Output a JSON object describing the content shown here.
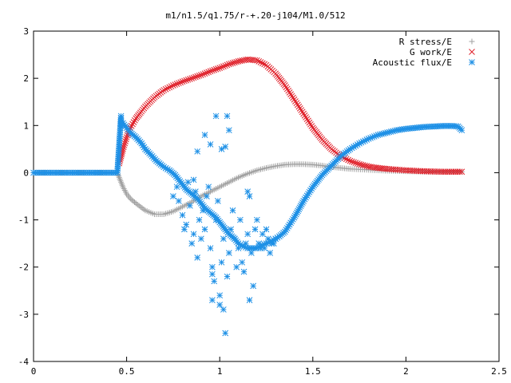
{
  "chart_data": {
    "type": "scatter",
    "title": "m1/n1.5/q1.75/r-+.20-j104/M1.0/512",
    "xlabel": "",
    "ylabel": "",
    "xlim": [
      0,
      2.5
    ],
    "ylim": [
      -4,
      3
    ],
    "xticks": [
      "0",
      "0.5",
      "1",
      "1.5",
      "2",
      "2.5"
    ],
    "yticks": [
      "3",
      "2",
      "1",
      "0",
      "-1",
      "-2",
      "-3",
      "-4"
    ],
    "grid": false,
    "legend_position": "top-right",
    "series": [
      {
        "name": "R stress/E",
        "color": "#a0a0a0",
        "marker": "plus",
        "x": [
          0.0,
          0.1,
          0.2,
          0.3,
          0.4,
          0.45,
          0.46,
          0.47,
          0.48,
          0.5,
          0.52,
          0.55,
          0.6,
          0.65,
          0.7,
          0.75,
          0.8,
          0.85,
          0.9,
          0.95,
          1.0,
          1.05,
          1.1,
          1.15,
          1.2,
          1.25,
          1.3,
          1.35,
          1.4,
          1.45,
          1.5,
          1.55,
          1.6,
          1.65,
          1.7,
          1.8,
          1.9,
          2.0,
          2.1,
          2.2,
          2.3
        ],
        "y": [
          0.0,
          0.0,
          0.0,
          0.0,
          0.0,
          0.0,
          -0.1,
          -0.2,
          -0.3,
          -0.45,
          -0.55,
          -0.65,
          -0.8,
          -0.88,
          -0.88,
          -0.82,
          -0.72,
          -0.62,
          -0.5,
          -0.4,
          -0.3,
          -0.2,
          -0.1,
          -0.02,
          0.05,
          0.1,
          0.14,
          0.17,
          0.18,
          0.18,
          0.17,
          0.15,
          0.12,
          0.1,
          0.08,
          0.06,
          0.04,
          0.03,
          0.02,
          0.02,
          0.02
        ]
      },
      {
        "name": "G work/E",
        "color": "#e0202a",
        "marker": "cross",
        "x": [
          0.46,
          0.47,
          0.48,
          0.5,
          0.52,
          0.55,
          0.58,
          0.6,
          0.65,
          0.7,
          0.75,
          0.8,
          0.85,
          0.9,
          0.95,
          1.0,
          1.05,
          1.1,
          1.15,
          1.2,
          1.25,
          1.3,
          1.35,
          1.4,
          1.45,
          1.5,
          1.55,
          1.6,
          1.65,
          1.7,
          1.75,
          1.8,
          1.85,
          1.9,
          2.0,
          2.1,
          2.2,
          2.3
        ],
        "y": [
          0.2,
          0.35,
          0.5,
          0.75,
          0.95,
          1.15,
          1.3,
          1.4,
          1.6,
          1.75,
          1.85,
          1.93,
          2.0,
          2.07,
          2.15,
          2.22,
          2.3,
          2.36,
          2.4,
          2.38,
          2.28,
          2.1,
          1.85,
          1.55,
          1.25,
          0.95,
          0.7,
          0.5,
          0.35,
          0.25,
          0.18,
          0.13,
          0.1,
          0.08,
          0.05,
          0.03,
          0.02,
          0.02
        ]
      },
      {
        "name": "Acoustic flux/E",
        "color": "#1e90e6",
        "marker": "star",
        "x": [
          0.0,
          0.05,
          0.1,
          0.15,
          0.2,
          0.25,
          0.3,
          0.35,
          0.4,
          0.45,
          0.47,
          0.47,
          0.48,
          0.5,
          0.52,
          0.55,
          0.58,
          0.6,
          0.63,
          0.66,
          0.7,
          0.73,
          0.76,
          0.78,
          0.8,
          0.82,
          0.85,
          0.88,
          0.9,
          0.92,
          0.95,
          0.98,
          1.0,
          1.03,
          1.05,
          1.08,
          1.1,
          1.12,
          1.15,
          1.18,
          1.2,
          1.22,
          1.25,
          1.28,
          1.3,
          1.32,
          1.35,
          1.4,
          1.45,
          1.5,
          1.55,
          1.6,
          1.65,
          1.7,
          1.75,
          1.8,
          1.85,
          1.9,
          1.95,
          2.0,
          2.05,
          2.1,
          2.15,
          2.2,
          2.25,
          2.28,
          2.3
        ],
        "y": [
          0.0,
          0.0,
          0.0,
          0.0,
          0.0,
          0.0,
          0.0,
          0.0,
          0.0,
          0.0,
          1.2,
          1.0,
          1.05,
          0.95,
          0.85,
          0.75,
          0.62,
          0.5,
          0.38,
          0.25,
          0.12,
          0.05,
          -0.05,
          -0.15,
          -0.25,
          -0.35,
          -0.45,
          -0.55,
          -0.65,
          -0.75,
          -0.85,
          -0.95,
          -1.05,
          -1.2,
          -1.3,
          -1.4,
          -1.5,
          -1.55,
          -1.6,
          -1.6,
          -1.6,
          -1.55,
          -1.5,
          -1.45,
          -1.4,
          -1.35,
          -1.25,
          -0.95,
          -0.6,
          -0.3,
          -0.05,
          0.15,
          0.35,
          0.5,
          0.62,
          0.72,
          0.8,
          0.85,
          0.9,
          0.93,
          0.95,
          0.97,
          0.98,
          0.99,
          0.99,
          0.98,
          0.9
        ],
        "scatter_x": [
          0.75,
          0.77,
          0.78,
          0.8,
          0.81,
          0.82,
          0.83,
          0.84,
          0.85,
          0.86,
          0.87,
          0.88,
          0.89,
          0.9,
          0.91,
          0.92,
          0.93,
          0.94,
          0.95,
          0.96,
          0.97,
          0.98,
          0.99,
          1.0,
          1.01,
          1.02,
          1.03,
          1.04,
          1.05,
          1.06,
          1.07,
          1.08,
          1.09,
          1.1,
          1.11,
          1.12,
          1.13,
          1.14,
          1.15,
          1.16,
          1.17,
          1.18,
          1.19,
          1.2,
          1.21,
          1.22,
          1.23,
          1.24,
          1.25,
          1.26,
          1.27,
          1.28,
          1.29,
          1.3,
          0.96,
          1.02,
          1.04,
          0.98,
          1.05,
          0.92,
          0.95,
          1.01,
          1.03,
          1.15,
          1.16,
          0.88,
          0.86,
          0.96,
          1.0
        ],
        "scatter_y": [
          -0.5,
          -0.3,
          -0.6,
          -0.9,
          -1.2,
          -1.1,
          -0.2,
          -0.7,
          -1.5,
          -1.3,
          -0.4,
          -1.8,
          -1.0,
          -1.4,
          -0.8,
          -1.2,
          -0.5,
          -0.3,
          -1.6,
          -2.0,
          -2.3,
          -1.0,
          -0.6,
          -2.6,
          -1.9,
          -1.4,
          -3.4,
          -2.2,
          -1.7,
          -1.2,
          -0.8,
          -1.4,
          -2.0,
          -1.6,
          -1.0,
          -1.9,
          -2.1,
          -1.5,
          -1.3,
          -0.5,
          -1.7,
          -2.4,
          -1.2,
          -1.0,
          -1.5,
          -1.6,
          -1.3,
          -1.6,
          -1.2,
          -1.4,
          -1.7,
          -1.5,
          -1.5,
          -1.4,
          -2.7,
          -2.9,
          1.2,
          1.2,
          0.9,
          0.8,
          0.6,
          0.5,
          0.55,
          -0.4,
          -2.7,
          0.45,
          -0.15,
          -2.15,
          -2.8
        ]
      }
    ]
  }
}
